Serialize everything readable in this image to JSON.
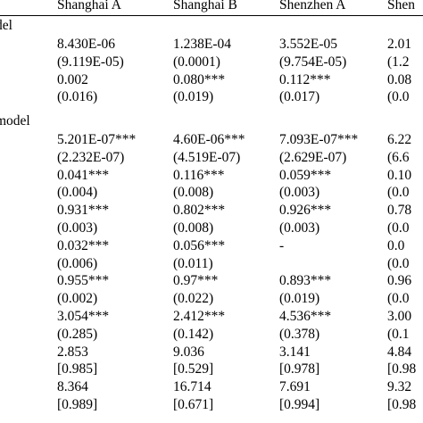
{
  "headers": [
    "Shanghai A",
    "Shanghai B",
    "Shenzhen A",
    "Shen"
  ],
  "sections": [
    {
      "label": "del",
      "rows": [
        [
          "8.430E-06",
          "1.238E-04",
          "3.552E-05",
          "2.01"
        ],
        [
          "(9.119E-05)",
          "(0.0001)",
          "(9.754E-05)",
          "(1.2"
        ],
        [
          "0.002",
          "0.080***",
          "0.112***",
          "0.08"
        ],
        [
          "(0.016)",
          "(0.019)",
          "(0.017)",
          "(0.0"
        ]
      ]
    },
    {
      "label": "model",
      "rows": [
        [
          "5.201E-07***",
          "4.60E-06***",
          "7.093E-07***",
          "6.22"
        ],
        [
          "(2.232E-07)",
          "(4.519E-07)",
          "(2.629E-07)",
          "(6.6"
        ],
        [
          "0.041***",
          "0.116***",
          "0.059***",
          "0.10"
        ],
        [
          "(0.004)",
          "(0.008)",
          "(0.003)",
          "(0.0"
        ],
        [
          "0.931***",
          "0.802***",
          "0.926***",
          "0.78"
        ],
        [
          "(0.003)",
          "(0.008)",
          "(0.003)",
          "(0.0"
        ],
        [
          "0.032***",
          "0.056***",
          "-",
          "0.0"
        ],
        [
          "(0.006)",
          "(0.011)",
          "",
          "(0.0"
        ],
        [
          "0.955***",
          "0.97***",
          "0.893***",
          "0.96"
        ],
        [
          "(0.002)",
          "(0.022)",
          "(0.019)",
          "(0.0"
        ],
        [
          "3.054***",
          "2.412***",
          "4.536***",
          "3.00"
        ],
        [
          "(0.285)",
          "(0.142)",
          "(0.378)",
          "(0.1"
        ],
        [
          "2.853",
          "9.036",
          "3.141",
          "4.84"
        ],
        [
          "[0.985]",
          "[0.529]",
          "[0.978]",
          "[0.98"
        ],
        [
          "8.364",
          "16.714",
          "7.691",
          "9.32"
        ],
        [
          "[0.989]",
          "[0.671]",
          "[0.994]",
          "[0.98"
        ]
      ]
    }
  ]
}
